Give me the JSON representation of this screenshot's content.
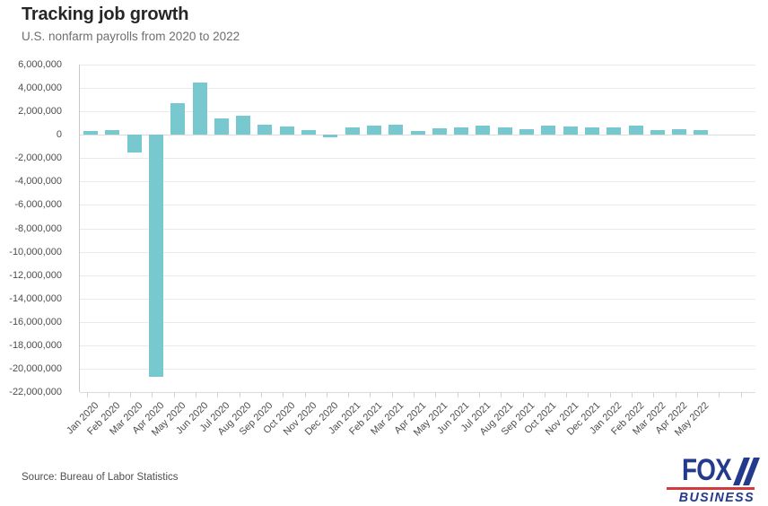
{
  "header": {
    "title": "Tracking job growth",
    "subtitle": "U.S. nonfarm payrolls from 2020 to 2022"
  },
  "footer": {
    "source": "Source: Bureau of Labor Statistics"
  },
  "logo": {
    "line1": "FOX",
    "line2": "BUSINESS",
    "navy": "#243a8c",
    "red": "#d6393d"
  },
  "colors": {
    "bar": "#77c9cf",
    "gridline": "#eaeaea",
    "axis": "#c9c9c9",
    "text": "#4d4d4d"
  },
  "chart_data": {
    "type": "bar",
    "title": "Tracking job growth",
    "subtitle": "U.S. nonfarm payrolls from 2020 to 2022",
    "xlabel": "",
    "ylabel": "",
    "grid": true,
    "legend": false,
    "ylim": [
      -22000000,
      6000000
    ],
    "ytick_step": 2000000,
    "bar_color": "#77c9cf",
    "categories": [
      "Jan 2020",
      "Feb 2020",
      "Mar 2020",
      "Apr 2020",
      "May 2020",
      "Jun 2020",
      "Jul 2020",
      "Aug 2020",
      "Sep 2020",
      "Oct 2020",
      "Nov 2020",
      "Dec 2020",
      "Jan 2021",
      "Feb 2021",
      "Mar 2021",
      "Apr 2021",
      "May 2021",
      "Jun 2021",
      "Jul 2021",
      "Aug 2021",
      "Sep 2021",
      "Oct 2021",
      "Nov 2021",
      "Dec 2021",
      "Jan 2022",
      "Feb 2022",
      "Mar 2022",
      "Apr 2022",
      "May 2022"
    ],
    "values": [
      300000,
      400000,
      -1500000,
      -20700000,
      2700000,
      4500000,
      1400000,
      1600000,
      900000,
      700000,
      400000,
      -200000,
      650000,
      800000,
      900000,
      300000,
      550000,
      650000,
      800000,
      600000,
      500000,
      750000,
      700000,
      650000,
      600000,
      750000,
      400000,
      450000,
      400000
    ]
  }
}
